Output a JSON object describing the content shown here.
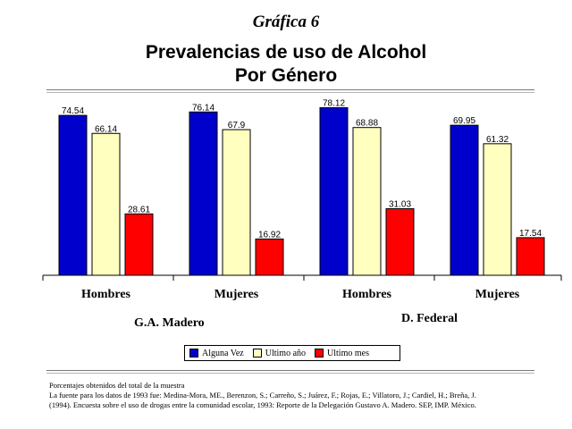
{
  "header": {
    "supertitle": "Gráfica 6",
    "title_line1": "Prevalencias de uso de Alcohol",
    "title_line2": "Por Género"
  },
  "chart_data": {
    "type": "bar",
    "categories": [
      "Hombres",
      "Mujeres",
      "Hombres",
      "Mujeres"
    ],
    "groups": [
      "G.A. Madero",
      "D. Federal"
    ],
    "series": [
      {
        "name": "Alguna Vez",
        "color": "#0000cc",
        "values": [
          74.54,
          76.14,
          78.12,
          69.95
        ]
      },
      {
        "name": "Ultimo año",
        "color": "#ffffc0",
        "values": [
          66.14,
          67.9,
          68.88,
          61.32
        ]
      },
      {
        "name": "Ultimo mes",
        "color": "#ff0000",
        "values": [
          28.61,
          16.92,
          31.03,
          17.54
        ]
      }
    ],
    "ylim": [
      0,
      80
    ],
    "legend_position": "bottom",
    "grid": false
  },
  "footer": {
    "line1": "Porcentajes obtenidos del total de la muestra",
    "line2": "La fuente para los datos de 1993 fue: Medina-Mora, ME., Berenzon, S.; Carreño, S.; Juárez, F.; Rojas, E.; Villatoro, J.; Cardiel, H.; Breña, J.",
    "line3": "(1994). Encuesta sobre el uso de drogas entre la comunidad escolar, 1993: Reporte de la Delegación Gustavo A. Madero. SEP, IMP. México."
  }
}
